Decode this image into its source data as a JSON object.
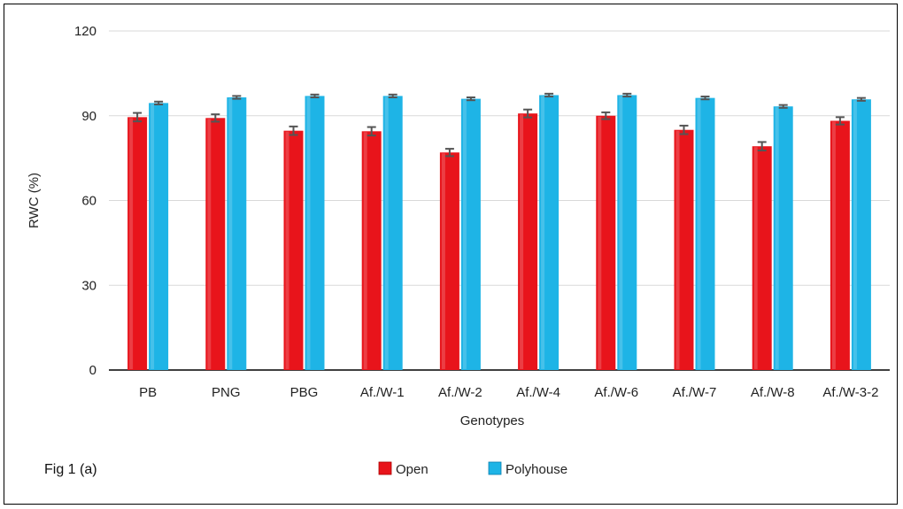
{
  "caption": "Fig 1 (a)",
  "chart_data": {
    "type": "bar",
    "title": "",
    "xlabel": "Genotypes",
    "ylabel": "RWC (%)",
    "ylim": [
      0,
      120
    ],
    "yticks": [
      0,
      30,
      60,
      90,
      120
    ],
    "grid": true,
    "legend_position": "bottom",
    "categories": [
      "PB",
      "PNG",
      "PBG",
      "Af./W-1",
      "Af./W-2",
      "Af./W-4",
      "Af./W-6",
      "Af./W-7",
      "Af./W-8",
      "Af./W-3-2"
    ],
    "series": [
      {
        "name": "Open",
        "color": "#e8141b",
        "values": [
          89.5,
          89.2,
          84.7,
          84.5,
          77.0,
          90.8,
          90.0,
          85.0,
          79.2,
          88.2
        ],
        "errors": [
          1.5,
          1.3,
          1.5,
          1.5,
          1.3,
          1.4,
          1.2,
          1.5,
          1.5,
          1.3
        ]
      },
      {
        "name": "Polyhouse",
        "color": "#1eb4e6",
        "values": [
          94.5,
          96.5,
          97.0,
          97.0,
          96.0,
          97.3,
          97.3,
          96.3,
          93.3,
          95.8
        ],
        "errors": [
          0.5,
          0.5,
          0.5,
          0.5,
          0.5,
          0.5,
          0.5,
          0.5,
          0.5,
          0.5
        ]
      }
    ]
  }
}
